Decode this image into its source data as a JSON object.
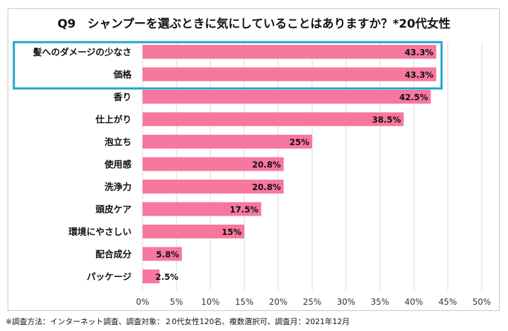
{
  "chart_data": {
    "type": "bar",
    "orientation": "horizontal",
    "title": "Q9　シャンプーを選ぶときに気にしていることはありますか？*20代女性",
    "categories": [
      "髪へのダメージの少なさ",
      "価格",
      "香り",
      "仕上がり",
      "泡立ち",
      "使用感",
      "洗浄力",
      "頭皮ケア",
      "環境にやさしい",
      "配合成分",
      "パッケージ"
    ],
    "values": [
      43.3,
      43.3,
      42.5,
      38.5,
      25,
      20.8,
      20.8,
      17.5,
      15,
      5.8,
      2.5
    ],
    "data_labels": [
      "43.3%",
      "43.3%",
      "42.5%",
      "38.5%",
      "25%",
      "20.8%",
      "20.8%",
      "17.5%",
      "15%",
      "5.8%",
      "2.5%"
    ],
    "xlim": [
      0,
      50
    ],
    "x_ticks": [
      "0%",
      "5%",
      "10%",
      "15%",
      "20%",
      "25%",
      "30%",
      "35%",
      "40%",
      "45%",
      "50%"
    ],
    "grid": true,
    "highlighted_categories": [
      "髪へのダメージの少なさ",
      "価格"
    ],
    "colors": {
      "bar": "#f7789f",
      "highlight": "#1ca3cf",
      "grid": "#d9d9d9"
    }
  },
  "footnote": "※調査方法：インターネット調査、調査対象：２0代女性120名、複数選択可、調査月：2021年12月"
}
